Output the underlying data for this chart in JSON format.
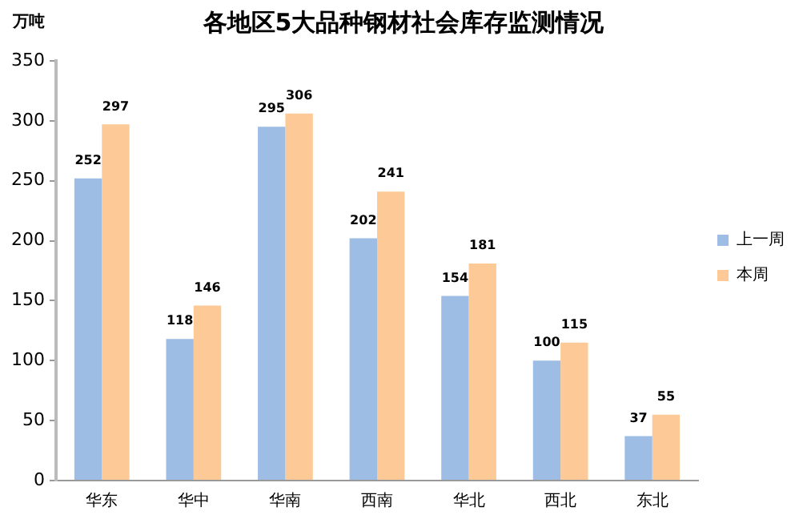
{
  "chart_data": {
    "type": "bar",
    "title": "各地区5大品种钢材社会库存监测情况",
    "ylabel": "万吨",
    "categories": [
      "华东",
      "华中",
      "华南",
      "西南",
      "华北",
      "西北",
      "东北"
    ],
    "series": [
      {
        "name": "上一周",
        "color": "#9dbde4",
        "values": [
          252,
          118,
          295,
          202,
          154,
          100,
          37
        ]
      },
      {
        "name": "本周",
        "color": "#fdca97",
        "values": [
          297,
          146,
          306,
          241,
          181,
          115,
          55
        ]
      }
    ],
    "ylim": [
      0,
      350
    ],
    "yticks": [
      0,
      50,
      100,
      150,
      200,
      250,
      300,
      350
    ],
    "grid": false,
    "legend": "right",
    "data_labels": true
  }
}
